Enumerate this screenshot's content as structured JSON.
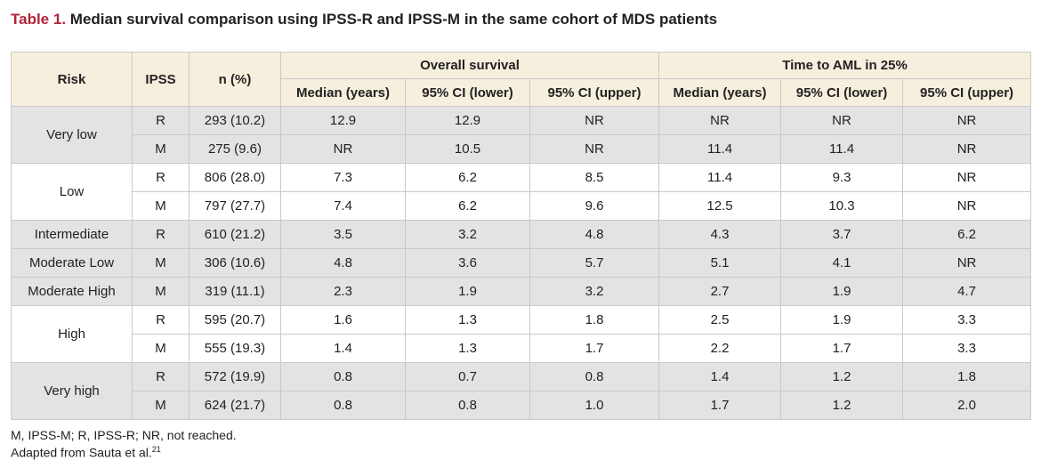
{
  "caption": {
    "label": "Table 1.",
    "text": "Median survival comparison using IPSS-R and IPSS-M in the same cohort of MDS patients"
  },
  "headers": {
    "risk": "Risk",
    "ipss": "IPSS",
    "n": "n (%)",
    "group_os": "Overall survival",
    "group_aml": "Time to AML in 25%",
    "median": "Median (years)",
    "ci_lower": "95% CI (lower)",
    "ci_upper": "95% CI (upper)"
  },
  "groups": [
    {
      "risk": "Very low",
      "rows": [
        {
          "ipss": "R",
          "n": "293 (10.2)",
          "os_median": "12.9",
          "os_lower": "12.9",
          "os_upper": "NR",
          "aml_median": "NR",
          "aml_lower": "NR",
          "aml_upper": "NR"
        },
        {
          "ipss": "M",
          "n": "275 (9.6)",
          "os_median": "NR",
          "os_lower": "10.5",
          "os_upper": "NR",
          "aml_median": "11.4",
          "aml_lower": "11.4",
          "aml_upper": "NR"
        }
      ]
    },
    {
      "risk": "Low",
      "rows": [
        {
          "ipss": "R",
          "n": "806 (28.0)",
          "os_median": "7.3",
          "os_lower": "6.2",
          "os_upper": "8.5",
          "aml_median": "11.4",
          "aml_lower": "9.3",
          "aml_upper": "NR"
        },
        {
          "ipss": "M",
          "n": "797 (27.7)",
          "os_median": "7.4",
          "os_lower": "6.2",
          "os_upper": "9.6",
          "aml_median": "12.5",
          "aml_lower": "10.3",
          "aml_upper": "NR"
        }
      ]
    },
    {
      "risk": "Intermediate",
      "rows": [
        {
          "ipss": "R",
          "n": "610 (21.2)",
          "os_median": "3.5",
          "os_lower": "3.2",
          "os_upper": "4.8",
          "aml_median": "4.3",
          "aml_lower": "3.7",
          "aml_upper": "6.2"
        }
      ]
    },
    {
      "risk": "Moderate Low",
      "rows": [
        {
          "ipss": "M",
          "n": "306 (10.6)",
          "os_median": "4.8",
          "os_lower": "3.6",
          "os_upper": "5.7",
          "aml_median": "5.1",
          "aml_lower": "4.1",
          "aml_upper": "NR"
        }
      ]
    },
    {
      "risk": "Moderate High",
      "rows": [
        {
          "ipss": "M",
          "n": "319 (11.1)",
          "os_median": "2.3",
          "os_lower": "1.9",
          "os_upper": "3.2",
          "aml_median": "2.7",
          "aml_lower": "1.9",
          "aml_upper": "4.7"
        }
      ]
    },
    {
      "risk": "High",
      "rows": [
        {
          "ipss": "R",
          "n": "595 (20.7)",
          "os_median": "1.6",
          "os_lower": "1.3",
          "os_upper": "1.8",
          "aml_median": "2.5",
          "aml_lower": "1.9",
          "aml_upper": "3.3"
        },
        {
          "ipss": "M",
          "n": "555 (19.3)",
          "os_median": "1.4",
          "os_lower": "1.3",
          "os_upper": "1.7",
          "aml_median": "2.2",
          "aml_lower": "1.7",
          "aml_upper": "3.3"
        }
      ]
    },
    {
      "risk": "Very high",
      "rows": [
        {
          "ipss": "R",
          "n": "572 (19.9)",
          "os_median": "0.8",
          "os_lower": "0.7",
          "os_upper": "0.8",
          "aml_median": "1.4",
          "aml_lower": "1.2",
          "aml_upper": "1.8"
        },
        {
          "ipss": "M",
          "n": "624 (21.7)",
          "os_median": "0.8",
          "os_lower": "0.8",
          "os_upper": "1.0",
          "aml_median": "1.7",
          "aml_lower": "1.2",
          "aml_upper": "2.0"
        }
      ]
    }
  ],
  "footnotes": {
    "abbreviations": "M, IPSS-M; R, IPSS-R; NR, not reached.",
    "source": "Adapted from Sauta et al.",
    "source_ref": "21"
  },
  "colors": {
    "caption_label": "#b0243a",
    "header_bg": "#f7efde",
    "shaded_row": "#e3e3e3",
    "border": "#c9c9c9"
  }
}
